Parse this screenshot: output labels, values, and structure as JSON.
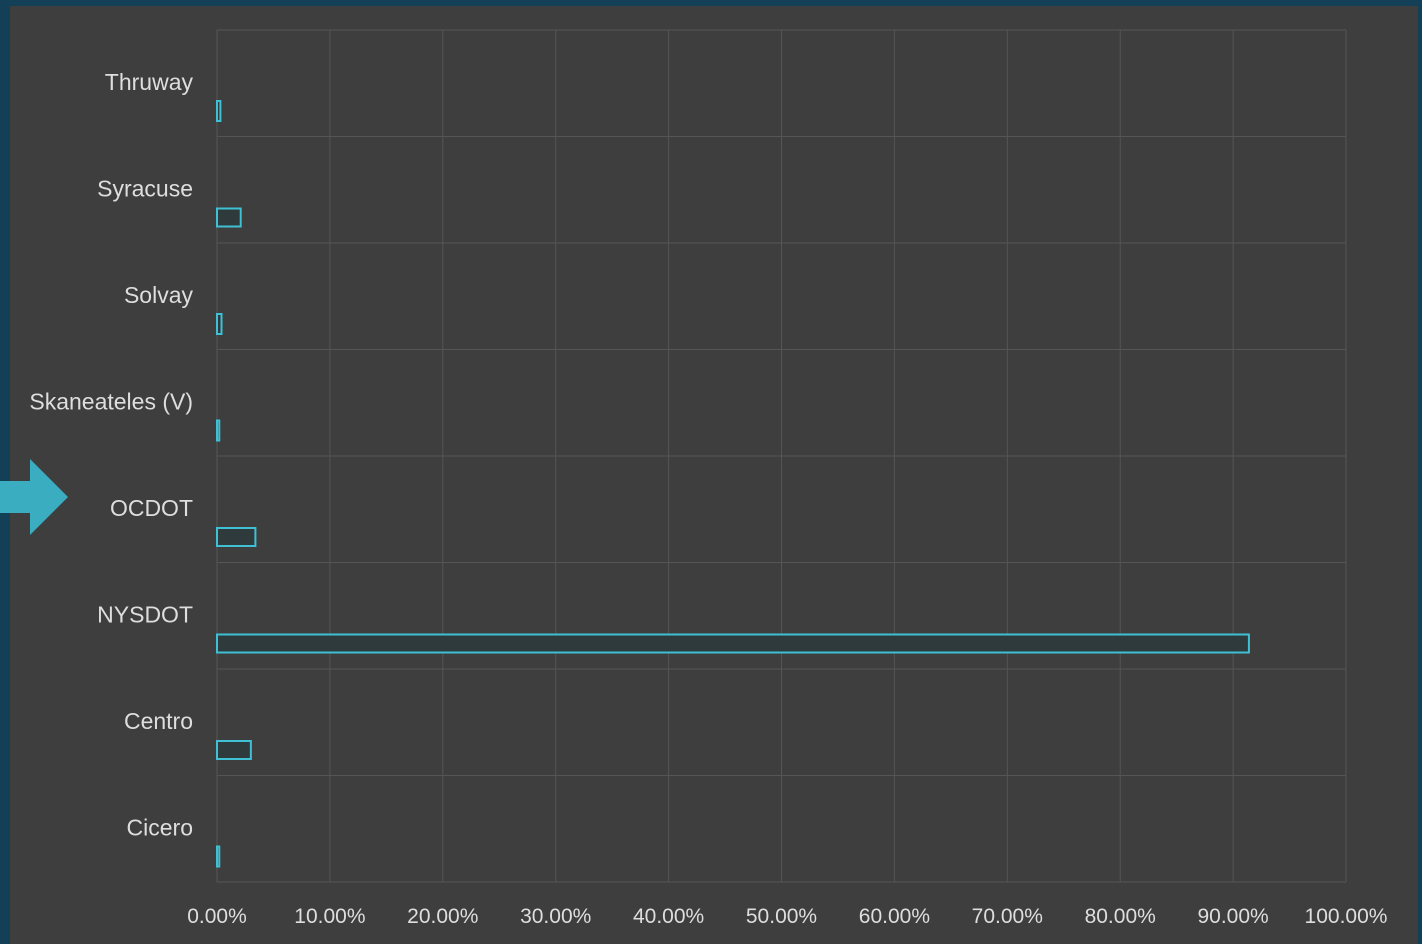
{
  "chart_data": {
    "type": "bar",
    "orientation": "horizontal",
    "categories": [
      "Thruway",
      "Syracuse",
      "Solvay",
      "Skaneateles (V)",
      "OCDOT",
      "NYSDOT",
      "Centro",
      "Cicero"
    ],
    "values": [
      0.3,
      2.1,
      0.4,
      0.2,
      3.4,
      91.4,
      3.0,
      0.2
    ],
    "xlim": [
      0,
      100
    ],
    "xticks": [
      0,
      10,
      20,
      30,
      40,
      50,
      60,
      70,
      80,
      90,
      100
    ],
    "tick_labels": [
      "0.00%",
      "10.00%",
      "20.00%",
      "30.00%",
      "40.00%",
      "50.00%",
      "60.00%",
      "70.00%",
      "80.00%",
      "90.00%",
      "100.00%"
    ],
    "grid": true,
    "highlighted_category": "OCDOT",
    "colors": {
      "background": "#3e3e3e",
      "frame": "#133f57",
      "bar_outline": "#3fc0d4",
      "bar_fill": "#2f3a3d",
      "grid": "#555555",
      "text": "#dedede",
      "arrow": "#3aaec0"
    }
  },
  "pointer": {
    "icon": "arrow-right-icon"
  }
}
